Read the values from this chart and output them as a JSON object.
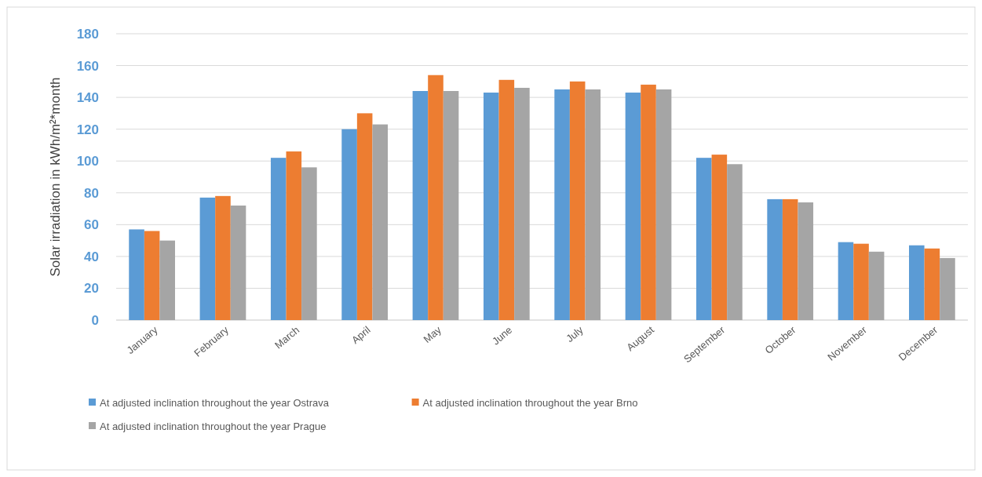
{
  "chart_data": {
    "type": "bar",
    "ylabel": "Solar irradiation in kWh/m²*month",
    "categories": [
      "January",
      "February",
      "March",
      "April",
      "May",
      "June",
      "July",
      "August",
      "September",
      "October",
      "November",
      "December"
    ],
    "series": [
      {
        "name": "At adjusted inclination throughout the year Ostrava",
        "color": "#5b9bd5",
        "values": [
          57,
          77,
          102,
          120,
          144,
          143,
          145,
          143,
          102,
          76,
          49,
          47
        ]
      },
      {
        "name": "At adjusted inclination throughout the year Brno",
        "color": "#ed7d31",
        "values": [
          56,
          78,
          106,
          130,
          154,
          151,
          150,
          148,
          104,
          76,
          48,
          45
        ]
      },
      {
        "name": "At adjusted inclination throughout the year Prague",
        "color": "#a5a5a5",
        "values": [
          50,
          72,
          96,
          123,
          144,
          146,
          145,
          145,
          98,
          74,
          43,
          39
        ]
      }
    ],
    "ylim": [
      0,
      180
    ],
    "yticks": [
      0,
      20,
      40,
      60,
      80,
      100,
      120,
      140,
      160,
      180
    ],
    "grid": "y",
    "legend": "bottom"
  }
}
